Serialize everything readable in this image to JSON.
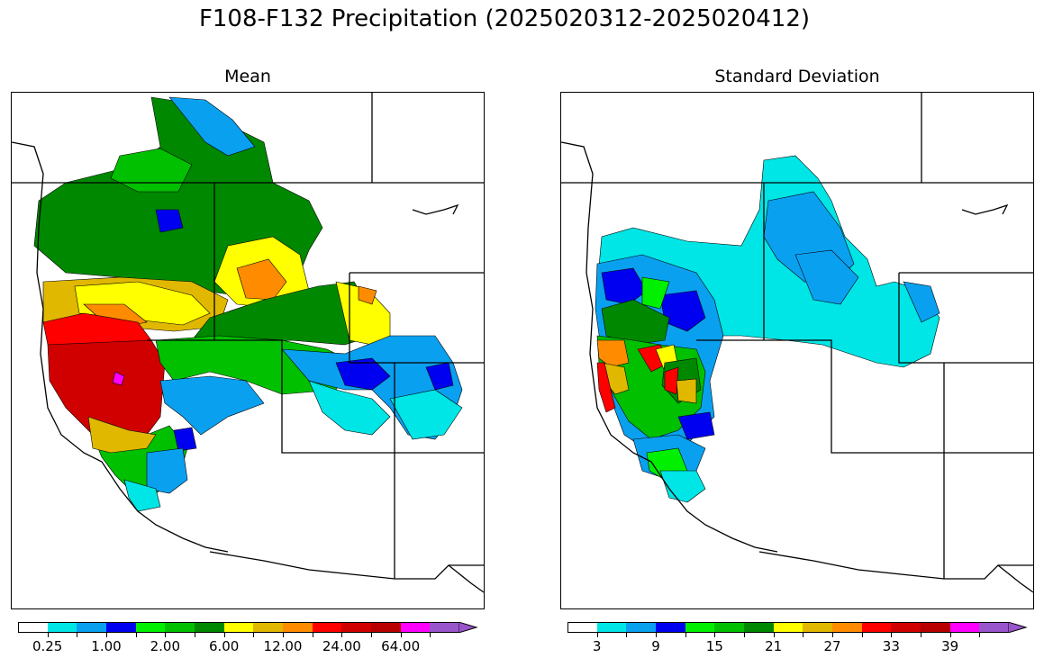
{
  "figure_title": "F108-F132 Precipitation (2025020312-2025020412)",
  "panels": [
    {
      "title": "Mean",
      "colorbar": {
        "colors": [
          "#ffffff",
          "#00e5e5",
          "#0aa0f0",
          "#0000f0",
          "#00f000",
          "#00c000",
          "#008800",
          "#ffff00",
          "#e0b800",
          "#ff8c00",
          "#ff0000",
          "#d00000",
          "#b80000",
          "#ff00ff",
          "#9955cc"
        ],
        "tick_labels": [
          "0.25",
          "1.00",
          "2.00",
          "6.00",
          "12.00",
          "24.00",
          "64.00"
        ],
        "extend": "max"
      }
    },
    {
      "title": "Standard Deviation",
      "colorbar": {
        "colors": [
          "#ffffff",
          "#00e5e5",
          "#0aa0f0",
          "#0000f0",
          "#00f000",
          "#00c000",
          "#008800",
          "#ffff00",
          "#e0b800",
          "#ff8c00",
          "#ff0000",
          "#d00000",
          "#b80000",
          "#ff00ff",
          "#9955cc"
        ],
        "tick_labels": [
          "3",
          "9",
          "15",
          "21",
          "27",
          "33",
          "39"
        ],
        "extend": "max"
      }
    }
  ]
}
